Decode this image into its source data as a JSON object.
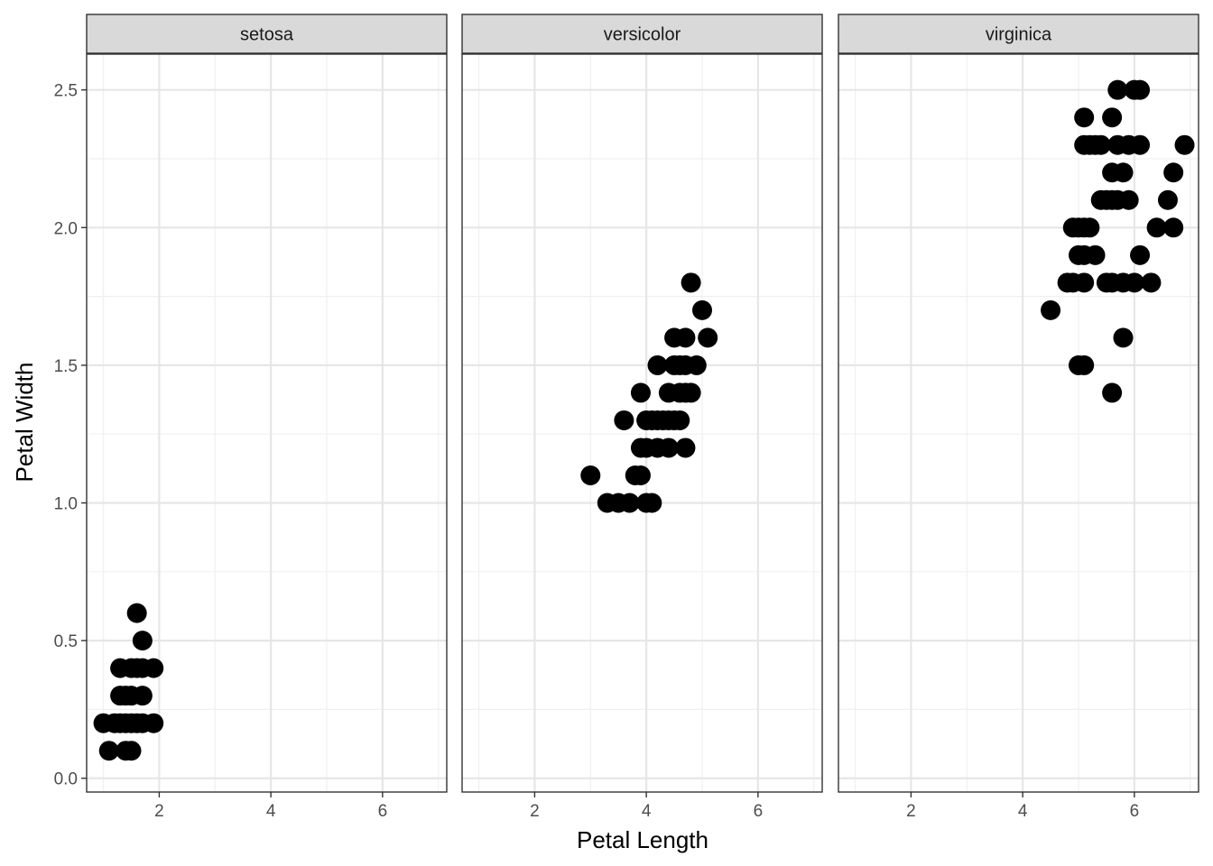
{
  "chart_data": {
    "type": "scatter",
    "facet_layout": "1 row, 3 columns, shared axes",
    "xlabel": "Petal Length",
    "ylabel": "Petal Width",
    "xlim": [
      0.7,
      7.15
    ],
    "ylim": [
      -0.05,
      2.63
    ],
    "xticks": [
      2,
      4,
      6
    ],
    "yticks": [
      0.0,
      0.5,
      1.0,
      1.5,
      2.0,
      2.5
    ],
    "ytick_labels": [
      "0.0",
      "0.5",
      "1.0",
      "1.5",
      "2.0",
      "2.5"
    ],
    "grid": true,
    "point_color": "#000000",
    "panels": [
      {
        "label": "setosa",
        "points": [
          [
            1.0,
            0.2
          ],
          [
            1.1,
            0.1
          ],
          [
            1.2,
            0.2
          ],
          [
            1.3,
            0.2
          ],
          [
            1.3,
            0.3
          ],
          [
            1.3,
            0.4
          ],
          [
            1.4,
            0.1
          ],
          [
            1.4,
            0.2
          ],
          [
            1.4,
            0.3
          ],
          [
            1.5,
            0.1
          ],
          [
            1.5,
            0.2
          ],
          [
            1.5,
            0.3
          ],
          [
            1.5,
            0.4
          ],
          [
            1.6,
            0.2
          ],
          [
            1.6,
            0.4
          ],
          [
            1.6,
            0.6
          ],
          [
            1.7,
            0.2
          ],
          [
            1.7,
            0.3
          ],
          [
            1.7,
            0.4
          ],
          [
            1.7,
            0.5
          ],
          [
            1.9,
            0.2
          ],
          [
            1.9,
            0.4
          ]
        ]
      },
      {
        "label": "versicolor",
        "points": [
          [
            3.0,
            1.1
          ],
          [
            3.3,
            1.0
          ],
          [
            3.5,
            1.0
          ],
          [
            3.6,
            1.3
          ],
          [
            3.7,
            1.0
          ],
          [
            3.8,
            1.1
          ],
          [
            3.9,
            1.1
          ],
          [
            3.9,
            1.2
          ],
          [
            3.9,
            1.4
          ],
          [
            4.0,
            1.0
          ],
          [
            4.0,
            1.2
          ],
          [
            4.0,
            1.3
          ],
          [
            4.1,
            1.0
          ],
          [
            4.1,
            1.3
          ],
          [
            4.2,
            1.2
          ],
          [
            4.2,
            1.3
          ],
          [
            4.2,
            1.5
          ],
          [
            4.3,
            1.3
          ],
          [
            4.4,
            1.2
          ],
          [
            4.4,
            1.3
          ],
          [
            4.4,
            1.4
          ],
          [
            4.5,
            1.3
          ],
          [
            4.5,
            1.5
          ],
          [
            4.5,
            1.6
          ],
          [
            4.6,
            1.3
          ],
          [
            4.6,
            1.4
          ],
          [
            4.6,
            1.5
          ],
          [
            4.7,
            1.2
          ],
          [
            4.7,
            1.4
          ],
          [
            4.7,
            1.5
          ],
          [
            4.7,
            1.6
          ],
          [
            4.8,
            1.4
          ],
          [
            4.8,
            1.8
          ],
          [
            4.9,
            1.5
          ],
          [
            5.0,
            1.7
          ],
          [
            5.1,
            1.6
          ]
        ]
      },
      {
        "label": "virginica",
        "points": [
          [
            4.5,
            1.7
          ],
          [
            4.8,
            1.8
          ],
          [
            4.9,
            1.8
          ],
          [
            4.9,
            2.0
          ],
          [
            5.0,
            1.5
          ],
          [
            5.0,
            1.9
          ],
          [
            5.0,
            2.0
          ],
          [
            5.1,
            1.5
          ],
          [
            5.1,
            1.8
          ],
          [
            5.1,
            1.9
          ],
          [
            5.1,
            2.0
          ],
          [
            5.1,
            2.3
          ],
          [
            5.1,
            2.4
          ],
          [
            5.2,
            2.0
          ],
          [
            5.2,
            2.3
          ],
          [
            5.3,
            1.9
          ],
          [
            5.3,
            2.3
          ],
          [
            5.4,
            2.1
          ],
          [
            5.4,
            2.3
          ],
          [
            5.5,
            1.8
          ],
          [
            5.5,
            2.1
          ],
          [
            5.6,
            1.4
          ],
          [
            5.6,
            1.8
          ],
          [
            5.6,
            2.1
          ],
          [
            5.6,
            2.2
          ],
          [
            5.6,
            2.4
          ],
          [
            5.7,
            2.1
          ],
          [
            5.7,
            2.3
          ],
          [
            5.7,
            2.5
          ],
          [
            5.8,
            1.6
          ],
          [
            5.8,
            1.8
          ],
          [
            5.8,
            2.2
          ],
          [
            5.9,
            2.1
          ],
          [
            5.9,
            2.3
          ],
          [
            6.0,
            1.8
          ],
          [
            6.0,
            2.5
          ],
          [
            6.1,
            1.9
          ],
          [
            6.1,
            2.3
          ],
          [
            6.1,
            2.5
          ],
          [
            6.3,
            1.8
          ],
          [
            6.4,
            2.0
          ],
          [
            6.6,
            2.1
          ],
          [
            6.7,
            2.0
          ],
          [
            6.7,
            2.2
          ],
          [
            6.9,
            2.3
          ]
        ]
      }
    ]
  }
}
